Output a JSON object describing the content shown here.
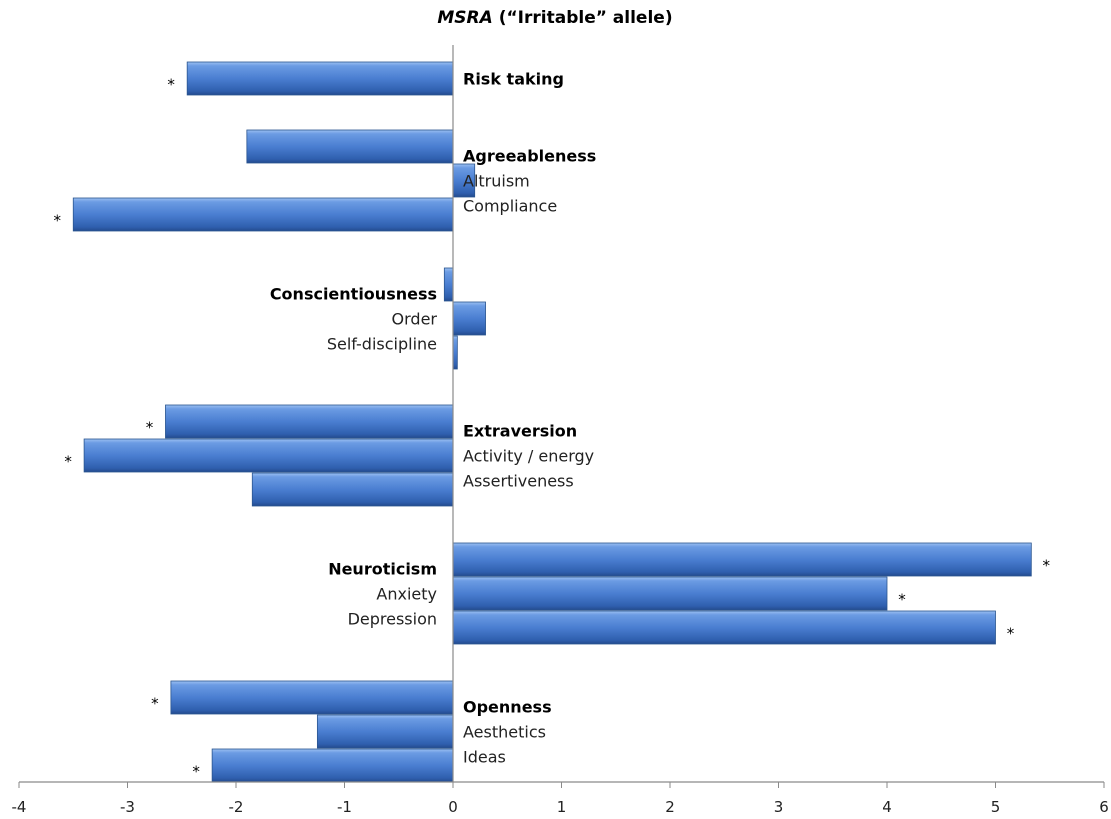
{
  "chart_data": {
    "type": "bar",
    "orientation": "horizontal",
    "title_italic": "MSRA",
    "title_rest": " (“Irritable” allele)",
    "xlim": [
      -4,
      6
    ],
    "xticks": [
      "-4",
      "-3",
      "-2",
      "-1",
      "0",
      "1",
      "2",
      "3",
      "4",
      "5",
      "6"
    ],
    "grid": false,
    "bar_color": "#4a7ed1",
    "groups": [
      {
        "name": "Risk taking",
        "label_side": "right",
        "items": [
          {
            "value": -2.45,
            "significant": true
          }
        ]
      },
      {
        "name": "Agreeableness",
        "label_side": "right",
        "subs": [
          "Altruism",
          "Compliance"
        ],
        "items": [
          {
            "value": -1.9,
            "significant": false
          },
          {
            "value": 0.2,
            "significant": false
          },
          {
            "value": -3.5,
            "significant": true
          }
        ]
      },
      {
        "name": "Conscientiousness",
        "label_side": "left",
        "subs": [
          "Order",
          "Self-discipline"
        ],
        "items": [
          {
            "value": -0.08,
            "significant": false
          },
          {
            "value": 0.3,
            "significant": false
          },
          {
            "value": 0.04,
            "significant": false
          }
        ]
      },
      {
        "name": "Extraversion",
        "label_side": "right",
        "subs": [
          "Activity / energy",
          "Assertiveness"
        ],
        "items": [
          {
            "value": -2.65,
            "significant": true
          },
          {
            "value": -3.4,
            "significant": true
          },
          {
            "value": -1.85,
            "significant": false
          }
        ]
      },
      {
        "name": "Neuroticism",
        "label_side": "left",
        "subs": [
          "Anxiety",
          "Depression"
        ],
        "items": [
          {
            "value": 5.33,
            "significant": true
          },
          {
            "value": 4.0,
            "significant": true
          },
          {
            "value": 5.0,
            "significant": true
          }
        ]
      },
      {
        "name": "Openness",
        "label_side": "right",
        "subs": [
          "Aesthetics",
          "Ideas"
        ],
        "items": [
          {
            "value": -2.6,
            "significant": true
          },
          {
            "value": -1.25,
            "significant": false
          },
          {
            "value": -2.22,
            "significant": true
          }
        ]
      }
    ],
    "significance_marker": "*"
  }
}
